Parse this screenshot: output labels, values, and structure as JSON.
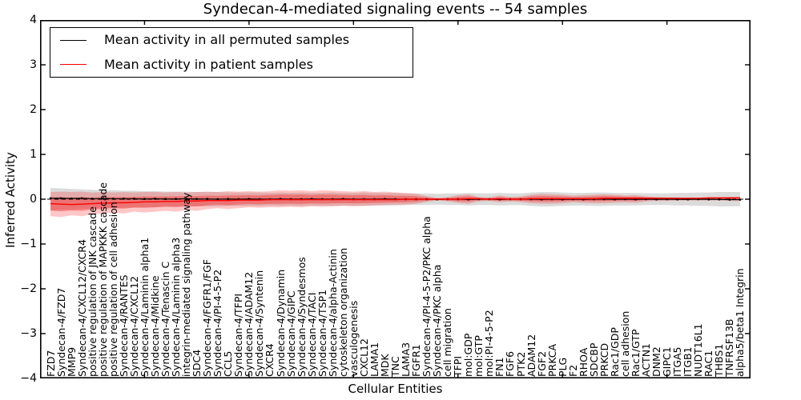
{
  "title": "Syndecan-4-mediated signaling events -- 54 samples",
  "axes": {
    "x_label": "Cellular Entities",
    "y_label": "Inferred Activity",
    "y_ticks": [
      "4",
      "3",
      "2",
      "1",
      "0",
      "−1",
      "−2",
      "−3",
      "−4"
    ]
  },
  "legend": {
    "items": [
      {
        "label": "Mean activity in all permuted samples",
        "color": "#000000"
      },
      {
        "label": "Mean activity in patient samples",
        "color": "#ff0000"
      }
    ],
    "position": "upper left"
  },
  "chart_data": {
    "type": "line",
    "title": "Syndecan-4-mediated signaling events -- 54 samples",
    "xlabel": "Cellular Entities",
    "ylabel": "Inferred Activity",
    "ylim": [
      -4,
      4
    ],
    "grid": false,
    "legend_position": "upper left",
    "zero_line": {
      "style": "dashed",
      "color": "#000000",
      "y": 0
    },
    "categories": [
      "FZD7",
      "Syndecan-4/FZD7",
      "MMP9",
      "Syndecan-4/CXCL12/CXCR4",
      "positive regulation of JNK cascade",
      "positive regulation of MAPKKK cascade",
      "positive regulation of cell adhesion",
      "Syndecan-4/RANTES",
      "Syndecan-4/CXCL12",
      "Syndecan-4/Laminin alpha1",
      "Syndecan-4/Midkine",
      "Syndecan-4/Tenascin C",
      "Syndecan-4/Laminin alpha3",
      "integrin-mediated signaling pathway",
      "SDC4",
      "Syndecan-4/FGFR1/FGF",
      "Syndecan-4/PI-4-5-P2",
      "CCL5",
      "Syndecan-4/TFPI",
      "Syndecan-4/ADAM12",
      "Syndecan-4/Syntenin",
      "CXCR4",
      "Syndecan-4/Dynamin",
      "Syndecan-4/GIPC",
      "Syndecan-4/Syndesmos",
      "Syndecan-4/TACI",
      "Syndecan-4/TSP1",
      "Syndecan-4/alpha-Actinin",
      "cytoskeleton organization",
      "vasculogenesis",
      "CXCL12",
      "LAMA1",
      "MDK",
      "TNC",
      "LAMA3",
      "FGFR1",
      "Syndecan-4/PI-4-5-P2/PKC alpha",
      "Syndecan-4/PKC alpha",
      "cell migration",
      "TFPI",
      "mol:GDP",
      "mol:GTP",
      "mol:PI-4-5-P2",
      "FN1",
      "FGF6",
      "PTK2",
      "ADAM12",
      "FGF2",
      "PRKCA",
      "PLG",
      "F2",
      "RHOA",
      "SDCBP",
      "PRKCD",
      "Rac1/GDP",
      "cell adhesion",
      "Rac1/GTP",
      "ACTN1",
      "DNM2",
      "GIPC1",
      "ITGA5",
      "ITGB1",
      "NUDT16L1",
      "RAC1",
      "THBS1",
      "TNFRSF13B",
      "alpha5/beta1 Integrin"
    ],
    "series": [
      {
        "name": "Mean activity in all permuted samples",
        "color": "#000000",
        "marker": "square",
        "values": [
          0.02,
          0.02,
          0.015,
          0.02,
          0.01,
          0.015,
          0.01,
          0.01,
          0.01,
          0.005,
          0.01,
          0.005,
          0.005,
          0.01,
          0.005,
          0.005,
          0.0,
          0.005,
          0.0,
          0.005,
          0.0,
          0.0,
          0.005,
          0.0,
          0.0,
          0.005,
          0.0,
          0.0,
          0.005,
          0.0,
          0.0,
          0.0,
          0.005,
          0.0,
          0.0,
          0.0,
          0.0,
          -0.005,
          0.0,
          0.0,
          -0.005,
          0.0,
          0.0,
          -0.005,
          0.0,
          0.0,
          0.0,
          -0.005,
          0.0,
          -0.005,
          0.0,
          -0.005,
          0.0,
          0.0,
          -0.005,
          0.0,
          -0.005,
          0.0,
          -0.005,
          0.0,
          -0.005,
          -0.005,
          0.0,
          -0.005,
          -0.005,
          -0.01,
          -0.01
        ]
      },
      {
        "name": "Mean activity in patient samples",
        "color": "#ff0000",
        "marker": "none",
        "values": [
          -0.1,
          -0.11,
          -0.12,
          -0.11,
          -0.1,
          -0.09,
          -0.08,
          -0.08,
          -0.07,
          -0.06,
          -0.06,
          -0.05,
          -0.05,
          -0.04,
          -0.04,
          -0.03,
          -0.03,
          -0.03,
          -0.02,
          -0.02,
          -0.02,
          -0.01,
          -0.01,
          -0.01,
          -0.01,
          -0.01,
          -0.01,
          -0.01,
          -0.01,
          -0.01,
          -0.01,
          -0.01,
          -0.01,
          -0.01,
          0.0,
          0.0,
          0.0,
          0.0,
          0.0,
          0.0,
          0.01,
          0.01,
          0.0,
          0.01,
          0.0,
          0.0,
          0.01,
          0.01,
          0.01,
          0.01,
          0.01,
          0.01,
          0.01,
          0.02,
          0.02,
          0.02,
          0.02,
          0.02,
          0.02,
          0.02,
          0.02,
          0.02,
          0.02,
          0.03,
          0.03,
          0.03,
          0.03
        ]
      }
    ],
    "bands": [
      {
        "name": "permuted-samples-std-band",
        "color": "#000000",
        "opacity": 0.14,
        "half_width": [
          0.25,
          0.24,
          0.23,
          0.22,
          0.21,
          0.2,
          0.2,
          0.19,
          0.19,
          0.18,
          0.18,
          0.17,
          0.17,
          0.17,
          0.16,
          0.16,
          0.16,
          0.15,
          0.15,
          0.15,
          0.15,
          0.14,
          0.15,
          0.14,
          0.15,
          0.14,
          0.14,
          0.15,
          0.14,
          0.14,
          0.15,
          0.14,
          0.14,
          0.14,
          0.13,
          0.13,
          0.13,
          0.12,
          0.13,
          0.13,
          0.14,
          0.13,
          0.13,
          0.14,
          0.13,
          0.13,
          0.15,
          0.16,
          0.16,
          0.15,
          0.14,
          0.14,
          0.15,
          0.15,
          0.14,
          0.14,
          0.14,
          0.13,
          0.13,
          0.13,
          0.14,
          0.14,
          0.15,
          0.15,
          0.16,
          0.16,
          0.16
        ]
      },
      {
        "name": "patient-samples-std-band",
        "color": "#ff0000",
        "opacity": 0.22,
        "inner_scale": 0.55,
        "upper": [
          0.16,
          0.17,
          0.16,
          0.17,
          0.15,
          0.16,
          0.15,
          0.16,
          0.15,
          0.16,
          0.16,
          0.15,
          0.16,
          0.15,
          0.16,
          0.17,
          0.16,
          0.18,
          0.17,
          0.18,
          0.17,
          0.18,
          0.2,
          0.19,
          0.2,
          0.18,
          0.2,
          0.19,
          0.18,
          0.17,
          0.18,
          0.16,
          0.17,
          0.15,
          0.14,
          0.12,
          0.07,
          0.03,
          0.05,
          0.09,
          0.11,
          0.05,
          0.04,
          0.08,
          0.05,
          0.06,
          0.1,
          0.12,
          0.11,
          0.1,
          0.08,
          0.09,
          0.1,
          0.11,
          0.1,
          0.08,
          0.09,
          0.06,
          0.05,
          0.04,
          0.04,
          0.03,
          0.03,
          0.03,
          0.04,
          0.05,
          0.05
        ],
        "lower": [
          -0.38,
          -0.4,
          -0.36,
          -0.38,
          -0.34,
          -0.32,
          -0.3,
          -0.32,
          -0.28,
          -0.3,
          -0.28,
          -0.26,
          -0.28,
          -0.24,
          -0.26,
          -0.22,
          -0.2,
          -0.22,
          -0.2,
          -0.18,
          -0.19,
          -0.18,
          -0.18,
          -0.17,
          -0.18,
          -0.16,
          -0.17,
          -0.16,
          -0.15,
          -0.16,
          -0.15,
          -0.14,
          -0.13,
          -0.12,
          -0.12,
          -0.1,
          -0.06,
          -0.03,
          -0.05,
          -0.08,
          -0.1,
          -0.05,
          -0.04,
          -0.07,
          -0.05,
          -0.06,
          -0.09,
          -0.1,
          -0.1,
          -0.09,
          -0.07,
          -0.08,
          -0.09,
          -0.09,
          -0.08,
          -0.07,
          -0.08,
          -0.05,
          -0.04,
          -0.04,
          -0.03,
          -0.03,
          -0.03,
          -0.03,
          -0.03,
          -0.04,
          -0.04
        ]
      }
    ],
    "x_major_tick_every": 10
  }
}
